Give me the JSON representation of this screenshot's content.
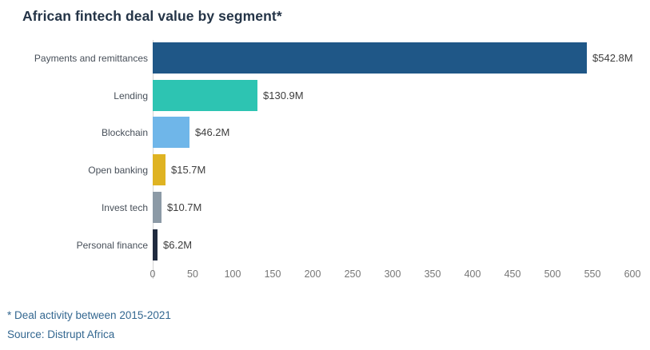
{
  "title": "African fintech deal value by segment*",
  "footnote": "* Deal activity between 2015-2021",
  "source": "Source: Distrupt Africa",
  "chart_data": {
    "type": "bar",
    "orientation": "horizontal",
    "title": "African fintech deal value by segment*",
    "xlabel": "",
    "ylabel": "",
    "xlim": [
      0,
      600
    ],
    "grid": false,
    "legend": "none",
    "categories": [
      "Payments and remittances",
      "Lending",
      "Blockchain",
      "Open banking",
      "Invest tech",
      "Personal finance"
    ],
    "values": [
      542.8,
      130.9,
      46.2,
      15.7,
      10.7,
      6.2
    ],
    "value_labels": [
      "$542.8M",
      "$130.9M",
      "$46.2M",
      "$15.7M",
      "$10.7M",
      "$6.2M"
    ],
    "bar_colors": [
      "#1F5787",
      "#2DC4B2",
      "#6FB6E9",
      "#DFB322",
      "#8C9AA6",
      "#202B3F"
    ],
    "x_ticks": [
      0,
      50,
      100,
      150,
      200,
      250,
      300,
      350,
      400,
      450,
      500,
      550,
      600
    ],
    "colors": {
      "title": "#243447",
      "category_label": "#474f59",
      "value_label": "#3d3d3d",
      "tick_label": "#767676",
      "footnote": "#336790",
      "axis_line": "#d4d4d4"
    }
  }
}
